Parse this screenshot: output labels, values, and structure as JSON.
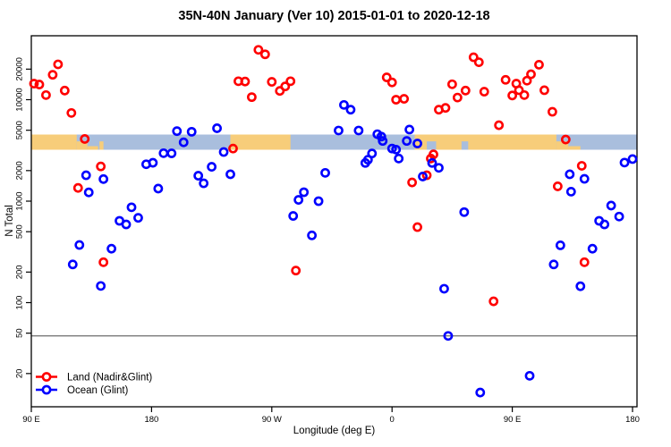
{
  "chart_data": {
    "type": "scatter",
    "title": "35N-40N January (Ver 10)   2015-01-01 to 2020-12-18",
    "xlabel": "Longitude (deg E)",
    "ylabel": "N Total",
    "x_axis": {
      "range_deg": [
        90,
        540
      ],
      "ticks_deg": [
        90,
        180,
        270,
        360,
        450,
        540
      ],
      "tick_labels": [
        "90 E",
        "180",
        "90 W",
        "0",
        "90 E",
        "180"
      ],
      "note": "longitude wraps eastward: 90E, 180, 90W, 0, 90E, 180"
    },
    "y_axis": {
      "scale": "log10",
      "ticks": [
        20,
        50,
        100,
        200,
        500,
        1000,
        2000,
        5000,
        10000,
        20000
      ],
      "range": [
        11,
        42000
      ]
    },
    "reference_line_y": 50,
    "grid": false,
    "legend_position": "bottom-left",
    "legend": [
      {
        "label": "Land (Nadir&Glint)",
        "color": "#ff0000"
      },
      {
        "label": "Ocean (Glint)",
        "color": "#0000ff"
      }
    ],
    "map_band": {
      "description": "35N-40N land/ocean strip drawn across plot near N=3200-4500",
      "n_top": 4500,
      "n_bottom": 3200,
      "ocean_color": "#a9bedd",
      "land_color": "#f7cd7a",
      "land_segments_deg": [
        {
          "from": 90,
          "to": 124,
          "shape": "full"
        },
        {
          "from": 124,
          "to": 132,
          "shape": "bottom_half"
        },
        {
          "from": 132,
          "to": 140,
          "shape": "bottom_sliver"
        },
        {
          "from": 141,
          "to": 144,
          "shape": "bottom_half"
        },
        {
          "from": 239,
          "to": 284,
          "shape": "full"
        },
        {
          "from": 377,
          "to": 483,
          "shape": "full"
        },
        {
          "from": 483,
          "to": 492,
          "shape": "bottom_half"
        },
        {
          "from": 492,
          "to": 501,
          "shape": "bottom_sliver"
        }
      ],
      "ocean_patches_deg": [
        {
          "from": 386,
          "to": 393,
          "shape": "bottom_half"
        },
        {
          "from": 412,
          "to": 417,
          "shape": "bottom_half"
        }
      ]
    },
    "series": [
      {
        "name": "Land (Nadir&Glint)",
        "color": "#ff0000",
        "marker": "open-circle",
        "points_lon_n": [
          [
            92,
            14400
          ],
          [
            96,
            14100
          ],
          [
            106,
            17600
          ],
          [
            110,
            22300
          ],
          [
            101,
            11100
          ],
          [
            115,
            12300
          ],
          [
            120,
            7400
          ],
          [
            130,
            4100
          ],
          [
            142,
            2200
          ],
          [
            125,
            1350
          ],
          [
            144,
            250
          ],
          [
            260,
            31000
          ],
          [
            265,
            28000
          ],
          [
            245,
            15200
          ],
          [
            250,
            15100
          ],
          [
            255,
            10600
          ],
          [
            270,
            15000
          ],
          [
            276,
            12200
          ],
          [
            280,
            13500
          ],
          [
            284,
            15200
          ],
          [
            241,
            3300
          ],
          [
            288,
            207
          ],
          [
            356,
            16600
          ],
          [
            360,
            14800
          ],
          [
            363,
            10000
          ],
          [
            369,
            10200
          ],
          [
            395,
            7970
          ],
          [
            400,
            8300
          ],
          [
            405,
            14200
          ],
          [
            409,
            10500
          ],
          [
            415,
            12300
          ],
          [
            421,
            26200
          ],
          [
            425,
            23400
          ],
          [
            429,
            12000
          ],
          [
            389,
            2630
          ],
          [
            391,
            2890
          ],
          [
            386,
            1800
          ],
          [
            375,
            1530
          ],
          [
            379,
            555
          ],
          [
            440,
            5600
          ],
          [
            436,
            103
          ],
          [
            445,
            15700
          ],
          [
            453,
            14400
          ],
          [
            450,
            11000
          ],
          [
            455,
            12400
          ],
          [
            459,
            11100
          ],
          [
            461,
            15400
          ],
          [
            464,
            17800
          ],
          [
            470,
            22100
          ],
          [
            474,
            12400
          ],
          [
            480,
            7600
          ],
          [
            490,
            4050
          ],
          [
            502,
            2230
          ],
          [
            484,
            1400
          ],
          [
            504,
            250
          ]
        ]
      },
      {
        "name": "Ocean (Glint)",
        "color": "#0000ff",
        "marker": "open-circle",
        "points_lon_n": [
          [
            199,
            4900
          ],
          [
            204,
            3800
          ],
          [
            189,
            2970
          ],
          [
            195,
            2960
          ],
          [
            176,
            2310
          ],
          [
            181,
            2390
          ],
          [
            131,
            1800
          ],
          [
            144,
            1650
          ],
          [
            133,
            1220
          ],
          [
            185,
            1330
          ],
          [
            165,
            870
          ],
          [
            156,
            640
          ],
          [
            161,
            590
          ],
          [
            170,
            685
          ],
          [
            126,
            370
          ],
          [
            150,
            340
          ],
          [
            121,
            238
          ],
          [
            142,
            146
          ],
          [
            210,
            4830
          ],
          [
            229,
            5230
          ],
          [
            234,
            3050
          ],
          [
            225,
            2180
          ],
          [
            215,
            1780
          ],
          [
            219,
            1500
          ],
          [
            239,
            1840
          ],
          [
            310,
            1900
          ],
          [
            294,
            1225
          ],
          [
            290,
            1030
          ],
          [
            305,
            1000
          ],
          [
            286,
            715
          ],
          [
            300,
            460
          ],
          [
            324,
            8880
          ],
          [
            329,
            7970
          ],
          [
            320,
            4970
          ],
          [
            335,
            4970
          ],
          [
            349,
            4570
          ],
          [
            352,
            4330
          ],
          [
            353,
            3920
          ],
          [
            373,
            5080
          ],
          [
            371,
            3920
          ],
          [
            379,
            3700
          ],
          [
            360,
            3300
          ],
          [
            363,
            3220
          ],
          [
            345,
            2950
          ],
          [
            342,
            2560
          ],
          [
            340,
            2380
          ],
          [
            365,
            2630
          ],
          [
            390,
            2380
          ],
          [
            395,
            2130
          ],
          [
            383,
            1750
          ],
          [
            414,
            780
          ],
          [
            399,
            137
          ],
          [
            402,
            47
          ],
          [
            426,
            13
          ],
          [
            463,
            19
          ],
          [
            486,
            367
          ],
          [
            510,
            340
          ],
          [
            481,
            238
          ],
          [
            501,
            145
          ],
          [
            493,
            1840
          ],
          [
            504,
            1660
          ],
          [
            494,
            1240
          ],
          [
            524,
            905
          ],
          [
            530,
            705
          ],
          [
            515,
            640
          ],
          [
            519,
            590
          ],
          [
            534,
            2400
          ],
          [
            540,
            2600
          ]
        ]
      }
    ]
  }
}
